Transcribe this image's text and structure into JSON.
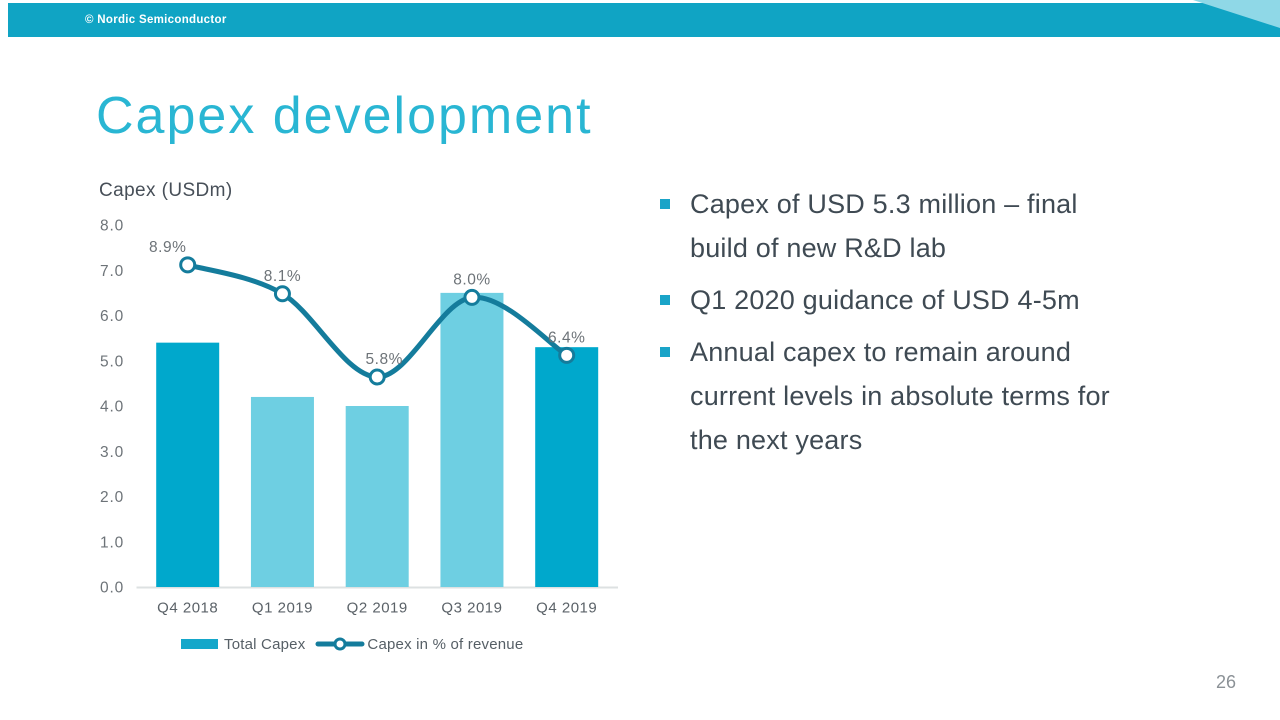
{
  "header": {
    "copyright": "© Nordic Semiconductor"
  },
  "title": "Capex development",
  "page_number": "26",
  "bullets": [
    {
      "lines": [
        "Capex of USD 5.3 million – final",
        "build of new R&D lab"
      ]
    },
    {
      "lines": [
        "Q1 2020 guidance of USD 4-5m"
      ]
    },
    {
      "lines": [
        "Annual capex to remain around",
        "current levels in absolute terms for",
        "the next years"
      ]
    }
  ],
  "colors": {
    "header_bar": "#10a4c4",
    "corner_triangle": "#8fd8e7",
    "title": "#29b6d3",
    "bar_dark": "#00a8cc",
    "bar_light": "#6ecfe2",
    "line": "#147c9c",
    "axis_line": "#dde1e2",
    "bullet_square": "#1aa4c8"
  },
  "chart_data": {
    "type": "bar",
    "subtype": "bar+line-combo",
    "title": "Capex (USDm)",
    "categories": [
      "Q4 2018",
      "Q1 2019",
      "Q2 2019",
      "Q3 2019",
      "Q4 2019"
    ],
    "series": [
      {
        "name": "Total Capex",
        "type": "bar",
        "unit": "USDm",
        "values": [
          5.4,
          4.2,
          4.0,
          6.5,
          5.3
        ],
        "colors": [
          "#00a8cc",
          "#6ecfe2",
          "#6ecfe2",
          "#6ecfe2",
          "#00a8cc"
        ]
      },
      {
        "name": "Capex in % of revenue",
        "type": "line",
        "unit": "%",
        "values": [
          8.9,
          8.1,
          5.8,
          8.0,
          6.4
        ],
        "labels": [
          "8.9%",
          "8.1%",
          "5.8%",
          "8.0%",
          "6.4%"
        ]
      }
    ],
    "y_ticks": [
      "8.0",
      "7.0",
      "6.0",
      "5.0",
      "4.0",
      "3.0",
      "2.0",
      "1.0",
      "0.0"
    ],
    "ylim": [
      0,
      8
    ],
    "secondary_ylim": [
      0,
      10
    ],
    "grid": false,
    "legend_position": "bottom"
  }
}
